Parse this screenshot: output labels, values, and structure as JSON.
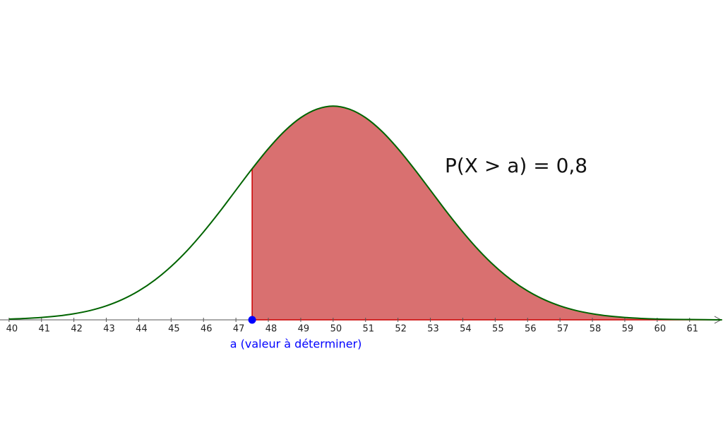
{
  "chart_data": {
    "type": "area",
    "x": [
      40,
      40.5,
      41,
      41.5,
      42,
      42.5,
      43,
      43.5,
      44,
      44.5,
      45,
      45.5,
      46,
      46.5,
      47,
      47.5,
      48,
      48.5,
      49,
      49.5,
      50,
      50.5,
      51,
      51.5,
      52,
      52.5,
      53,
      53.5,
      54,
      54.5,
      55,
      55.5,
      56,
      56.5,
      57,
      57.5,
      58,
      58.5,
      59,
      59.5,
      60,
      60.5,
      61,
      61.5,
      62
    ],
    "values": [
      0.0005,
      0.0009,
      0.0015,
      0.0024,
      0.0038,
      0.0058,
      0.0087,
      0.0127,
      0.018,
      0.0248,
      0.0332,
      0.0432,
      0.0547,
      0.0673,
      0.0807,
      0.094,
      0.1065,
      0.1174,
      0.1258,
      0.1311,
      0.133,
      0.1311,
      0.1258,
      0.1174,
      0.1065,
      0.094,
      0.0807,
      0.0673,
      0.0547,
      0.0432,
      0.0332,
      0.0248,
      0.018,
      0.0127,
      0.0087,
      0.0058,
      0.0038,
      0.0024,
      0.0015,
      0.0009,
      0.0005,
      0.0003,
      0.0002,
      0.0001,
      0
    ],
    "color": "#006400",
    "fill": "#d97070",
    "edge_color": "#cc0000",
    "xlim": [
      39.72,
      62.03
    ],
    "ylim": [
      -0.076,
      0.199
    ],
    "xticks": [
      40,
      41,
      42,
      43,
      44,
      45,
      46,
      47,
      48,
      49,
      50,
      51,
      52,
      53,
      54,
      55,
      56,
      57,
      58,
      59,
      60,
      61
    ],
    "a": 47.5,
    "a_label": "a (valeur à déterminer)",
    "point_color": "#0000ff",
    "annotation": "P(X > a) = 0,8"
  }
}
